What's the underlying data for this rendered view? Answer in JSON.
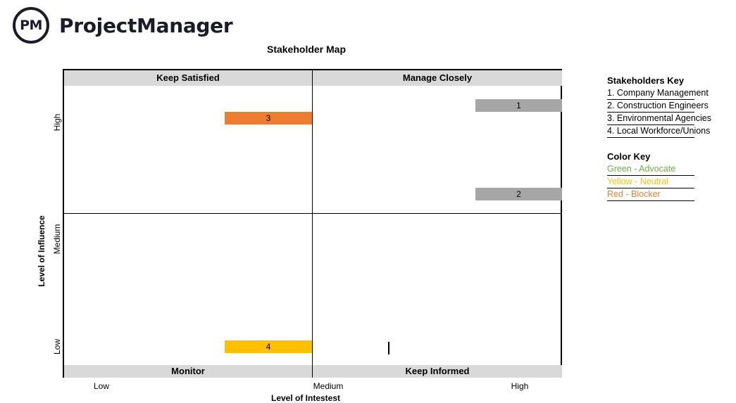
{
  "brand": {
    "logo_mark": "PM",
    "name": "ProjectManager"
  },
  "title": "Stakeholder Map",
  "quadrants": {
    "top_left": "Keep Satisfied",
    "top_right": "Manage Closely",
    "bottom_left": "Monitor",
    "bottom_right": "Keep Informed"
  },
  "y_axis": {
    "title": "Level of Influence",
    "ticks": [
      "High",
      "Medium",
      "Low"
    ]
  },
  "x_axis": {
    "title": "Level of Intestest",
    "ticks": [
      "Low",
      "Medium",
      "High"
    ]
  },
  "stakeholder_markers": [
    {
      "number": "1",
      "color": "#a6a6a6"
    },
    {
      "number": "2",
      "color": "#a6a6a6"
    },
    {
      "number": "3",
      "color": "#ed7d31"
    },
    {
      "number": "4",
      "color": "#ffc000"
    }
  ],
  "stakeholders_key": {
    "title": "Stakeholders Key",
    "items": [
      "1. Company Management",
      "2. Construction Engineers",
      "3. Environmental Agencies",
      "4. Local Workforce/Unions"
    ]
  },
  "color_key": {
    "title": "Color Key",
    "items": [
      {
        "label": "Green - Advocate",
        "color": "#70ad47"
      },
      {
        "label": "Yellow - Neutral",
        "color": "#ffc000"
      },
      {
        "label": "Red - Blocker",
        "color": "#ed7d31"
      }
    ]
  }
}
